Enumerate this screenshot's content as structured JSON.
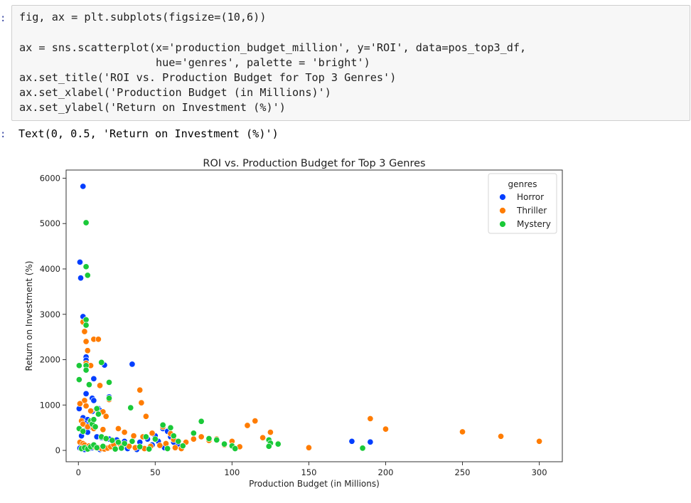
{
  "cells": {
    "input_prompt": ":",
    "output_prompt": ":",
    "code_lines": [
      "fig, ax = plt.subplots(figsize=(10,6))",
      "",
      "ax = sns.scatterplot(x='production_budget_million', y='ROI', data=pos_top3_df,",
      "                     hue='genres', palette = 'bright')",
      "ax.set_title('ROI vs. Production Budget for Top 3 Genres')",
      "ax.set_xlabel('Production Budget (in Millions)')",
      "ax.set_ylabel('Return on Investment (%)')"
    ],
    "output_text": "Text(0, 0.5, 'Return on Investment (%)')"
  },
  "chart_data": {
    "type": "scatter",
    "title": "ROI vs. Production Budget for Top 3 Genres",
    "xlabel": "Production Budget (in Millions)",
    "ylabel": "Return on Investment (%)",
    "xlim": [
      -8,
      315
    ],
    "ylim": [
      -250,
      6180
    ],
    "xticks": [
      0,
      50,
      100,
      150,
      200,
      250,
      300
    ],
    "yticks": [
      0,
      1000,
      2000,
      3000,
      4000,
      5000,
      6000
    ],
    "legend": {
      "title": "genres",
      "position": "top-right"
    },
    "grid": false,
    "series": [
      {
        "name": "Horror",
        "color": "#023eff",
        "points": [
          [
            3,
            5820
          ],
          [
            1,
            4150
          ],
          [
            1.5,
            3800
          ],
          [
            3,
            2950
          ],
          [
            5,
            2060
          ],
          [
            5,
            1990
          ],
          [
            17,
            1880
          ],
          [
            35,
            1900
          ],
          [
            10,
            1580
          ],
          [
            5,
            1250
          ],
          [
            9,
            1150
          ],
          [
            10,
            1100
          ],
          [
            20,
            1180
          ],
          [
            0.5,
            920
          ],
          [
            13,
            920
          ],
          [
            14,
            880
          ],
          [
            9,
            860
          ],
          [
            3,
            720
          ],
          [
            6,
            680
          ],
          [
            4,
            600
          ],
          [
            7,
            580
          ],
          [
            8,
            520
          ],
          [
            5,
            450
          ],
          [
            6,
            400
          ],
          [
            2,
            320
          ],
          [
            12,
            300
          ],
          [
            15,
            280
          ],
          [
            20,
            250
          ],
          [
            25,
            230
          ],
          [
            30,
            200
          ],
          [
            40,
            180
          ],
          [
            45,
            250
          ],
          [
            50,
            320
          ],
          [
            55,
            480
          ],
          [
            58,
            420
          ],
          [
            60,
            300
          ],
          [
            62,
            180
          ],
          [
            65,
            120
          ],
          [
            1,
            50
          ],
          [
            2,
            30
          ],
          [
            4,
            20
          ],
          [
            7,
            40
          ],
          [
            9,
            60
          ],
          [
            11,
            80
          ],
          [
            14,
            20
          ],
          [
            16,
            30
          ],
          [
            22,
            100
          ],
          [
            28,
            60
          ],
          [
            32,
            40
          ],
          [
            38,
            20
          ],
          [
            48,
            120
          ],
          [
            52,
            200
          ],
          [
            56,
            60
          ],
          [
            178,
            200
          ],
          [
            190,
            185
          ],
          [
            150,
            60
          ]
        ]
      },
      {
        "name": "Thriller",
        "color": "#ff7c00",
        "points": [
          [
            3,
            2830
          ],
          [
            4,
            2620
          ],
          [
            5,
            2400
          ],
          [
            10,
            2450
          ],
          [
            13,
            2450
          ],
          [
            6,
            2200
          ],
          [
            5,
            1920
          ],
          [
            8,
            1870
          ],
          [
            14,
            1430
          ],
          [
            20,
            1120
          ],
          [
            40,
            1330
          ],
          [
            41,
            1050
          ],
          [
            4,
            1100
          ],
          [
            1,
            1030
          ],
          [
            5,
            980
          ],
          [
            8,
            870
          ],
          [
            12,
            900
          ],
          [
            16,
            850
          ],
          [
            18,
            750
          ],
          [
            44,
            750
          ],
          [
            2,
            650
          ],
          [
            3,
            580
          ],
          [
            6,
            520
          ],
          [
            10,
            480
          ],
          [
            16,
            460
          ],
          [
            26,
            480
          ],
          [
            30,
            400
          ],
          [
            36,
            320
          ],
          [
            42,
            300
          ],
          [
            48,
            380
          ],
          [
            55,
            520
          ],
          [
            60,
            370
          ],
          [
            62,
            240
          ],
          [
            70,
            180
          ],
          [
            75,
            250
          ],
          [
            80,
            300
          ],
          [
            85,
            220
          ],
          [
            90,
            250
          ],
          [
            95,
            120
          ],
          [
            100,
            200
          ],
          [
            105,
            80
          ],
          [
            110,
            550
          ],
          [
            115,
            650
          ],
          [
            120,
            280
          ],
          [
            125,
            400
          ],
          [
            130,
            150
          ],
          [
            150,
            60
          ],
          [
            190,
            700
          ],
          [
            200,
            470
          ],
          [
            250,
            410
          ],
          [
            275,
            310
          ],
          [
            300,
            200
          ],
          [
            1,
            180
          ],
          [
            3,
            150
          ],
          [
            4,
            120
          ],
          [
            7,
            100
          ],
          [
            9,
            90
          ],
          [
            11,
            70
          ],
          [
            13,
            60
          ],
          [
            15,
            40
          ],
          [
            17,
            30
          ],
          [
            19,
            50
          ],
          [
            21,
            80
          ],
          [
            23,
            120
          ],
          [
            27,
            140
          ],
          [
            33,
            90
          ],
          [
            37,
            60
          ],
          [
            43,
            40
          ],
          [
            47,
            90
          ],
          [
            53,
            110
          ],
          [
            57,
            150
          ],
          [
            63,
            60
          ],
          [
            67,
            40
          ]
        ]
      },
      {
        "name": "Mystery",
        "color": "#1ac938",
        "points": [
          [
            5,
            5020
          ],
          [
            5,
            4050
          ],
          [
            6,
            3860
          ],
          [
            5,
            2880
          ],
          [
            5,
            2760
          ],
          [
            0.5,
            1870
          ],
          [
            5,
            1870
          ],
          [
            5,
            1770
          ],
          [
            15,
            1940
          ],
          [
            20,
            1500
          ],
          [
            0.5,
            1560
          ],
          [
            7,
            1450
          ],
          [
            34,
            940
          ],
          [
            20,
            1150
          ],
          [
            12,
            920
          ],
          [
            13,
            800
          ],
          [
            8,
            650
          ],
          [
            0.5,
            480
          ],
          [
            3,
            420
          ],
          [
            9,
            580
          ],
          [
            11,
            520
          ],
          [
            10,
            680
          ],
          [
            15,
            300
          ],
          [
            18,
            260
          ],
          [
            22,
            220
          ],
          [
            26,
            180
          ],
          [
            30,
            150
          ],
          [
            35,
            200
          ],
          [
            44,
            300
          ],
          [
            50,
            250
          ],
          [
            55,
            560
          ],
          [
            60,
            500
          ],
          [
            62,
            320
          ],
          [
            65,
            200
          ],
          [
            68,
            100
          ],
          [
            75,
            380
          ],
          [
            80,
            640
          ],
          [
            85,
            260
          ],
          [
            90,
            230
          ],
          [
            95,
            140
          ],
          [
            100,
            100
          ],
          [
            102,
            40
          ],
          [
            124,
            230
          ],
          [
            125,
            160
          ],
          [
            130,
            140
          ],
          [
            124,
            90
          ],
          [
            185,
            50
          ],
          [
            2,
            40
          ],
          [
            4,
            60
          ],
          [
            6,
            30
          ],
          [
            8,
            80
          ],
          [
            10,
            120
          ],
          [
            12,
            60
          ],
          [
            16,
            90
          ],
          [
            24,
            30
          ],
          [
            28,
            50
          ],
          [
            40,
            80
          ],
          [
            46,
            30
          ],
          [
            58,
            40
          ]
        ]
      }
    ]
  }
}
